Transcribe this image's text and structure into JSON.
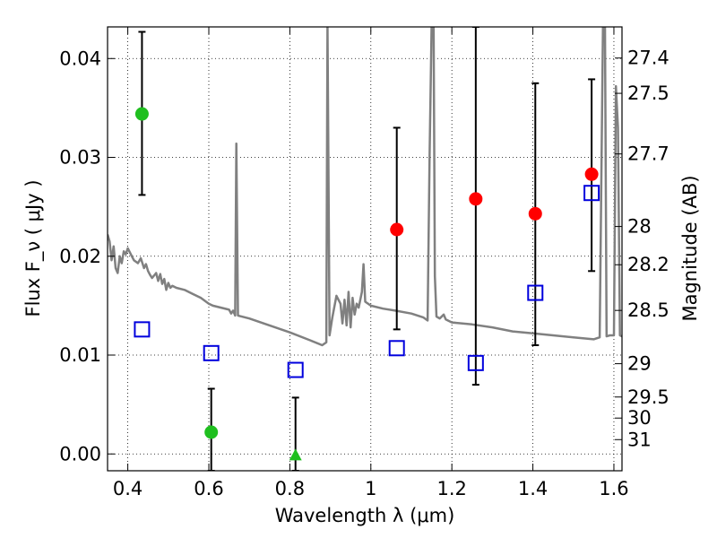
{
  "chart_data": {
    "type": "scatter",
    "title": "",
    "xlabel": "Wavelength  λ (μm)",
    "ylabel": "Flux  F_ν  ( μJy )",
    "ylabel_right": "Magnitude (AB)",
    "xlim": [
      0.35,
      1.62
    ],
    "ylim": [
      -0.0017,
      0.0432
    ],
    "grid": true,
    "x_ticks": [
      0.4,
      0.6,
      0.8,
      1.0,
      1.2,
      1.4,
      1.6
    ],
    "x_tick_labels": [
      "0.4",
      "0.6",
      "0.8",
      "1",
      "1.2",
      "1.4",
      "1.6"
    ],
    "y_ticks": [
      0.0,
      0.01,
      0.02,
      0.03,
      0.04
    ],
    "y_tick_labels": [
      "0.00",
      "0.01",
      "0.02",
      "0.03",
      "0.04"
    ],
    "right_ticks": [
      {
        "label": "27.4",
        "flux": 0.04005
      },
      {
        "label": "27.5",
        "flux": 0.03648
      },
      {
        "label": "27.7",
        "flux": 0.03035
      },
      {
        "label": "28",
        "flux": 0.02301
      },
      {
        "label": "28.2",
        "flux": 0.01914
      },
      {
        "label": "28.5",
        "flux": 0.01452
      },
      {
        "label": "29",
        "flux": 0.00913
      },
      {
        "label": "29.5",
        "flux": 0.00576
      },
      {
        "label": "30",
        "flux": 0.00363
      },
      {
        "label": "31",
        "flux": 0.00145
      }
    ],
    "series": [
      {
        "type": "points",
        "marker": "circle",
        "color": "#1fbf1f",
        "points": [
          {
            "x": 0.435,
            "y": 0.0344,
            "ylo": 0.0262,
            "yhi": 0.0427
          },
          {
            "x": 0.606,
            "y": 0.0022,
            "ylo": -0.0017,
            "yhi": 0.0066
          }
        ]
      },
      {
        "type": "points",
        "marker": "triangle",
        "color": "#1fbf1f",
        "points": [
          {
            "x": 0.814,
            "y": -0.0001,
            "ylo": -0.0017,
            "yhi": 0.0057
          }
        ]
      },
      {
        "type": "points",
        "marker": "circle",
        "color": "#ff0000",
        "points": [
          {
            "x": 1.064,
            "y": 0.0227,
            "ylo": 0.0126,
            "yhi": 0.033
          },
          {
            "x": 1.259,
            "y": 0.0258,
            "ylo": 0.007,
            "yhi": 0.0432
          },
          {
            "x": 1.406,
            "y": 0.0243,
            "ylo": 0.011,
            "yhi": 0.0375
          },
          {
            "x": 1.545,
            "y": 0.0283,
            "ylo": 0.0185,
            "yhi": 0.0379
          }
        ]
      },
      {
        "type": "points",
        "marker": "square-open",
        "color": "#0000dd",
        "points": [
          {
            "x": 0.435,
            "y": 0.0126
          },
          {
            "x": 0.606,
            "y": 0.0102
          },
          {
            "x": 0.814,
            "y": 0.0085
          },
          {
            "x": 1.064,
            "y": 0.0107
          },
          {
            "x": 1.259,
            "y": 0.0092
          },
          {
            "x": 1.406,
            "y": 0.0163
          },
          {
            "x": 1.545,
            "y": 0.0264
          }
        ]
      },
      {
        "type": "line",
        "color": "#808080",
        "points": [
          [
            0.35,
            0.0222
          ],
          [
            0.355,
            0.0215
          ],
          [
            0.36,
            0.0196
          ],
          [
            0.365,
            0.021
          ],
          [
            0.37,
            0.0188
          ],
          [
            0.375,
            0.0183
          ],
          [
            0.38,
            0.02
          ],
          [
            0.385,
            0.0193
          ],
          [
            0.39,
            0.0205
          ],
          [
            0.395,
            0.0202
          ],
          [
            0.4,
            0.0208
          ],
          [
            0.41,
            0.02
          ],
          [
            0.415,
            0.0196
          ],
          [
            0.425,
            0.0193
          ],
          [
            0.432,
            0.0198
          ],
          [
            0.44,
            0.0188
          ],
          [
            0.445,
            0.0192
          ],
          [
            0.45,
            0.0185
          ],
          [
            0.455,
            0.0181
          ],
          [
            0.46,
            0.0178
          ],
          [
            0.47,
            0.0183
          ],
          [
            0.475,
            0.0175
          ],
          [
            0.48,
            0.0182
          ],
          [
            0.485,
            0.0172
          ],
          [
            0.49,
            0.0177
          ],
          [
            0.495,
            0.0166
          ],
          [
            0.5,
            0.0173
          ],
          [
            0.505,
            0.0168
          ],
          [
            0.51,
            0.017
          ],
          [
            0.52,
            0.0168
          ],
          [
            0.54,
            0.0166
          ],
          [
            0.56,
            0.0162
          ],
          [
            0.58,
            0.0158
          ],
          [
            0.6,
            0.0152
          ],
          [
            0.61,
            0.015
          ],
          [
            0.63,
            0.0148
          ],
          [
            0.65,
            0.0146
          ],
          [
            0.655,
            0.0142
          ],
          [
            0.66,
            0.0145
          ],
          [
            0.665,
            0.014
          ],
          [
            0.668,
            0.0314
          ],
          [
            0.672,
            0.014
          ],
          [
            0.7,
            0.0137
          ],
          [
            0.75,
            0.013
          ],
          [
            0.8,
            0.0123
          ],
          [
            0.85,
            0.0115
          ],
          [
            0.88,
            0.011
          ],
          [
            0.89,
            0.0113
          ],
          [
            0.893,
            0.0435
          ],
          [
            0.898,
            0.012
          ],
          [
            0.905,
            0.0138
          ],
          [
            0.915,
            0.016
          ],
          [
            0.925,
            0.0152
          ],
          [
            0.93,
            0.0132
          ],
          [
            0.935,
            0.0156
          ],
          [
            0.94,
            0.013
          ],
          [
            0.945,
            0.0164
          ],
          [
            0.95,
            0.0128
          ],
          [
            0.955,
            0.0158
          ],
          [
            0.96,
            0.0141
          ],
          [
            0.965,
            0.0152
          ],
          [
            0.97,
            0.0148
          ],
          [
            0.978,
            0.0164
          ],
          [
            0.982,
            0.0192
          ],
          [
            0.986,
            0.0154
          ],
          [
            1.0,
            0.015
          ],
          [
            1.03,
            0.0147
          ],
          [
            1.06,
            0.0145
          ],
          [
            1.1,
            0.0142
          ],
          [
            1.13,
            0.0138
          ],
          [
            1.14,
            0.0135
          ],
          [
            1.145,
            0.03
          ],
          [
            1.15,
            0.0435
          ],
          [
            1.155,
            0.0435
          ],
          [
            1.158,
            0.018
          ],
          [
            1.162,
            0.0139
          ],
          [
            1.17,
            0.0137
          ],
          [
            1.18,
            0.0141
          ],
          [
            1.185,
            0.0136
          ],
          [
            1.2,
            0.0133
          ],
          [
            1.25,
            0.0131
          ],
          [
            1.3,
            0.0128
          ],
          [
            1.35,
            0.0124
          ],
          [
            1.4,
            0.0122
          ],
          [
            1.45,
            0.012
          ],
          [
            1.5,
            0.0118
          ],
          [
            1.55,
            0.0116
          ],
          [
            1.565,
            0.0118
          ],
          [
            1.573,
            0.0435
          ],
          [
            1.578,
            0.0435
          ],
          [
            1.582,
            0.0119
          ],
          [
            1.59,
            0.012
          ],
          [
            1.6,
            0.012
          ],
          [
            1.605,
            0.0372
          ],
          [
            1.61,
            0.033
          ],
          [
            1.615,
            0.012
          ],
          [
            1.62,
            0.0119
          ]
        ]
      }
    ]
  }
}
